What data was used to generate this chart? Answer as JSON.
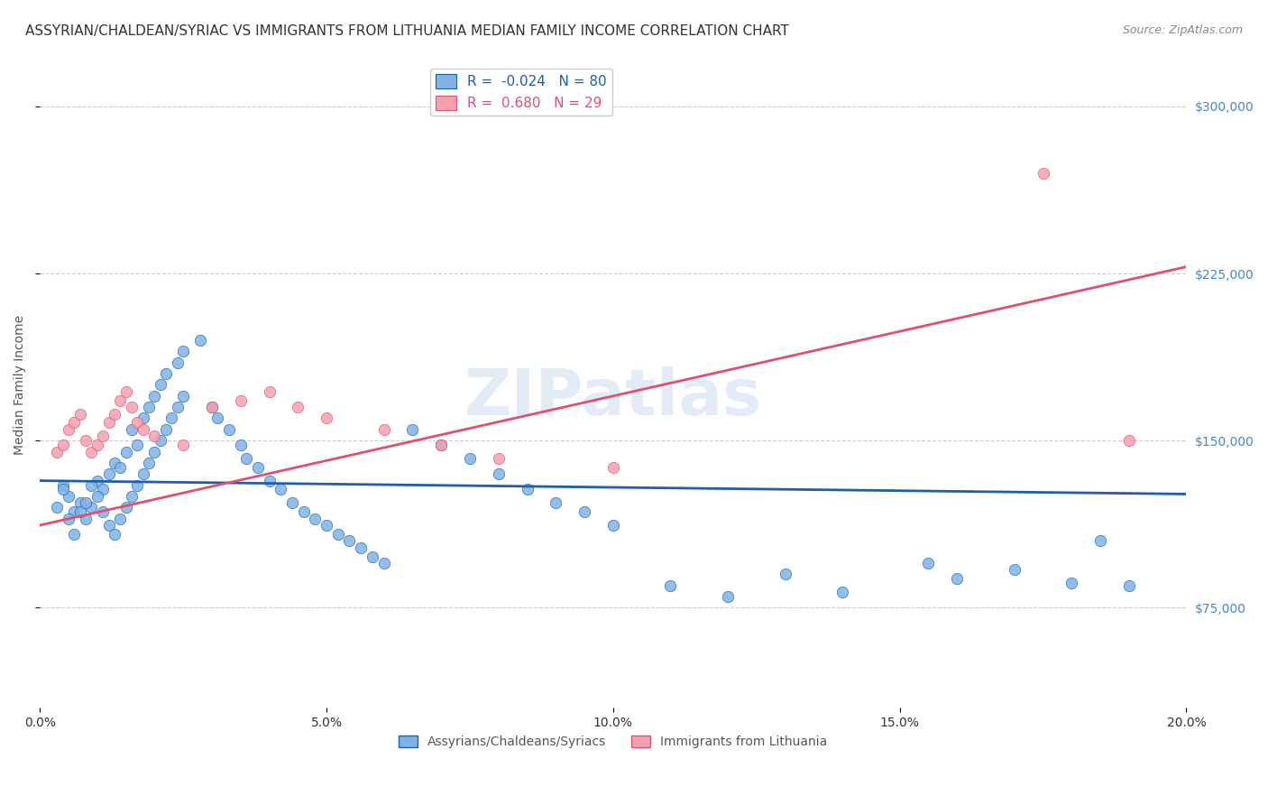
{
  "title": "ASSYRIAN/CHALDEAN/SYRIAC VS IMMIGRANTS FROM LITHUANIA MEDIAN FAMILY INCOME CORRELATION CHART",
  "source": "Source: ZipAtlas.com",
  "xlabel": "",
  "ylabel": "Median Family Income",
  "xlim": [
    0.0,
    0.2
  ],
  "ylim": [
    30000,
    320000
  ],
  "yticks": [
    75000,
    150000,
    225000,
    300000
  ],
  "ytick_labels": [
    "$75,000",
    "$150,000",
    "$225,000",
    "$300,000"
  ],
  "xticks": [
    0.0,
    0.05,
    0.1,
    0.15,
    0.2
  ],
  "xtick_labels": [
    "0.0%",
    "5.0%",
    "10.0%",
    "15.0%",
    "20.0%"
  ],
  "blue_label": "Assyrians/Chaldeans/Syriacs",
  "pink_label": "Immigrants from Lithuania",
  "blue_R": -0.024,
  "blue_N": 80,
  "pink_R": 0.68,
  "pink_N": 29,
  "blue_color": "#7EB3E8",
  "pink_color": "#F4A0B0",
  "blue_line_color": "#1F5EAA",
  "pink_line_color": "#E05070",
  "background_color": "#FFFFFF",
  "grid_color": "#CCCCCC",
  "watermark": "ZIPatlas",
  "watermark_color": "#C8D8F0",
  "blue_scatter_x": [
    0.004,
    0.005,
    0.006,
    0.007,
    0.008,
    0.009,
    0.01,
    0.011,
    0.012,
    0.013,
    0.014,
    0.015,
    0.016,
    0.017,
    0.018,
    0.019,
    0.02,
    0.021,
    0.022,
    0.024,
    0.025,
    0.028,
    0.03,
    0.031,
    0.033,
    0.035,
    0.036,
    0.038,
    0.04,
    0.042,
    0.044,
    0.046,
    0.048,
    0.05,
    0.052,
    0.054,
    0.056,
    0.058,
    0.06,
    0.065,
    0.07,
    0.075,
    0.08,
    0.085,
    0.09,
    0.095,
    0.1,
    0.11,
    0.12,
    0.13,
    0.14,
    0.155,
    0.16,
    0.17,
    0.18,
    0.185,
    0.19,
    0.003,
    0.004,
    0.005,
    0.006,
    0.007,
    0.008,
    0.009,
    0.01,
    0.011,
    0.012,
    0.013,
    0.014,
    0.015,
    0.016,
    0.017,
    0.018,
    0.019,
    0.02,
    0.021,
    0.022,
    0.023,
    0.024,
    0.025
  ],
  "blue_scatter_y": [
    130000,
    125000,
    118000,
    122000,
    115000,
    120000,
    132000,
    128000,
    135000,
    140000,
    138000,
    145000,
    155000,
    148000,
    160000,
    165000,
    170000,
    175000,
    180000,
    185000,
    190000,
    195000,
    165000,
    160000,
    155000,
    148000,
    142000,
    138000,
    132000,
    128000,
    122000,
    118000,
    115000,
    112000,
    108000,
    105000,
    102000,
    98000,
    95000,
    155000,
    148000,
    142000,
    135000,
    128000,
    122000,
    118000,
    112000,
    85000,
    80000,
    90000,
    82000,
    95000,
    88000,
    92000,
    86000,
    105000,
    85000,
    120000,
    128000,
    115000,
    108000,
    118000,
    122000,
    130000,
    125000,
    118000,
    112000,
    108000,
    115000,
    120000,
    125000,
    130000,
    135000,
    140000,
    145000,
    150000,
    155000,
    160000,
    165000,
    170000
  ],
  "pink_scatter_x": [
    0.003,
    0.004,
    0.005,
    0.006,
    0.007,
    0.008,
    0.009,
    0.01,
    0.011,
    0.012,
    0.013,
    0.014,
    0.015,
    0.016,
    0.017,
    0.018,
    0.02,
    0.025,
    0.03,
    0.035,
    0.04,
    0.045,
    0.05,
    0.06,
    0.07,
    0.08,
    0.1,
    0.175,
    0.19
  ],
  "pink_scatter_y": [
    145000,
    148000,
    155000,
    158000,
    162000,
    150000,
    145000,
    148000,
    152000,
    158000,
    162000,
    168000,
    172000,
    165000,
    158000,
    155000,
    152000,
    148000,
    165000,
    168000,
    172000,
    165000,
    160000,
    155000,
    148000,
    142000,
    138000,
    270000,
    150000
  ],
  "blue_regline_x": [
    0.0,
    0.2
  ],
  "blue_regline_y": [
    132000,
    126000
  ],
  "pink_regline_x": [
    0.0,
    0.2
  ],
  "pink_regline_y": [
    112000,
    228000
  ],
  "title_fontsize": 11,
  "axis_label_fontsize": 10,
  "tick_fontsize": 10,
  "legend_fontsize": 11,
  "right_tick_color": "#4488CC"
}
